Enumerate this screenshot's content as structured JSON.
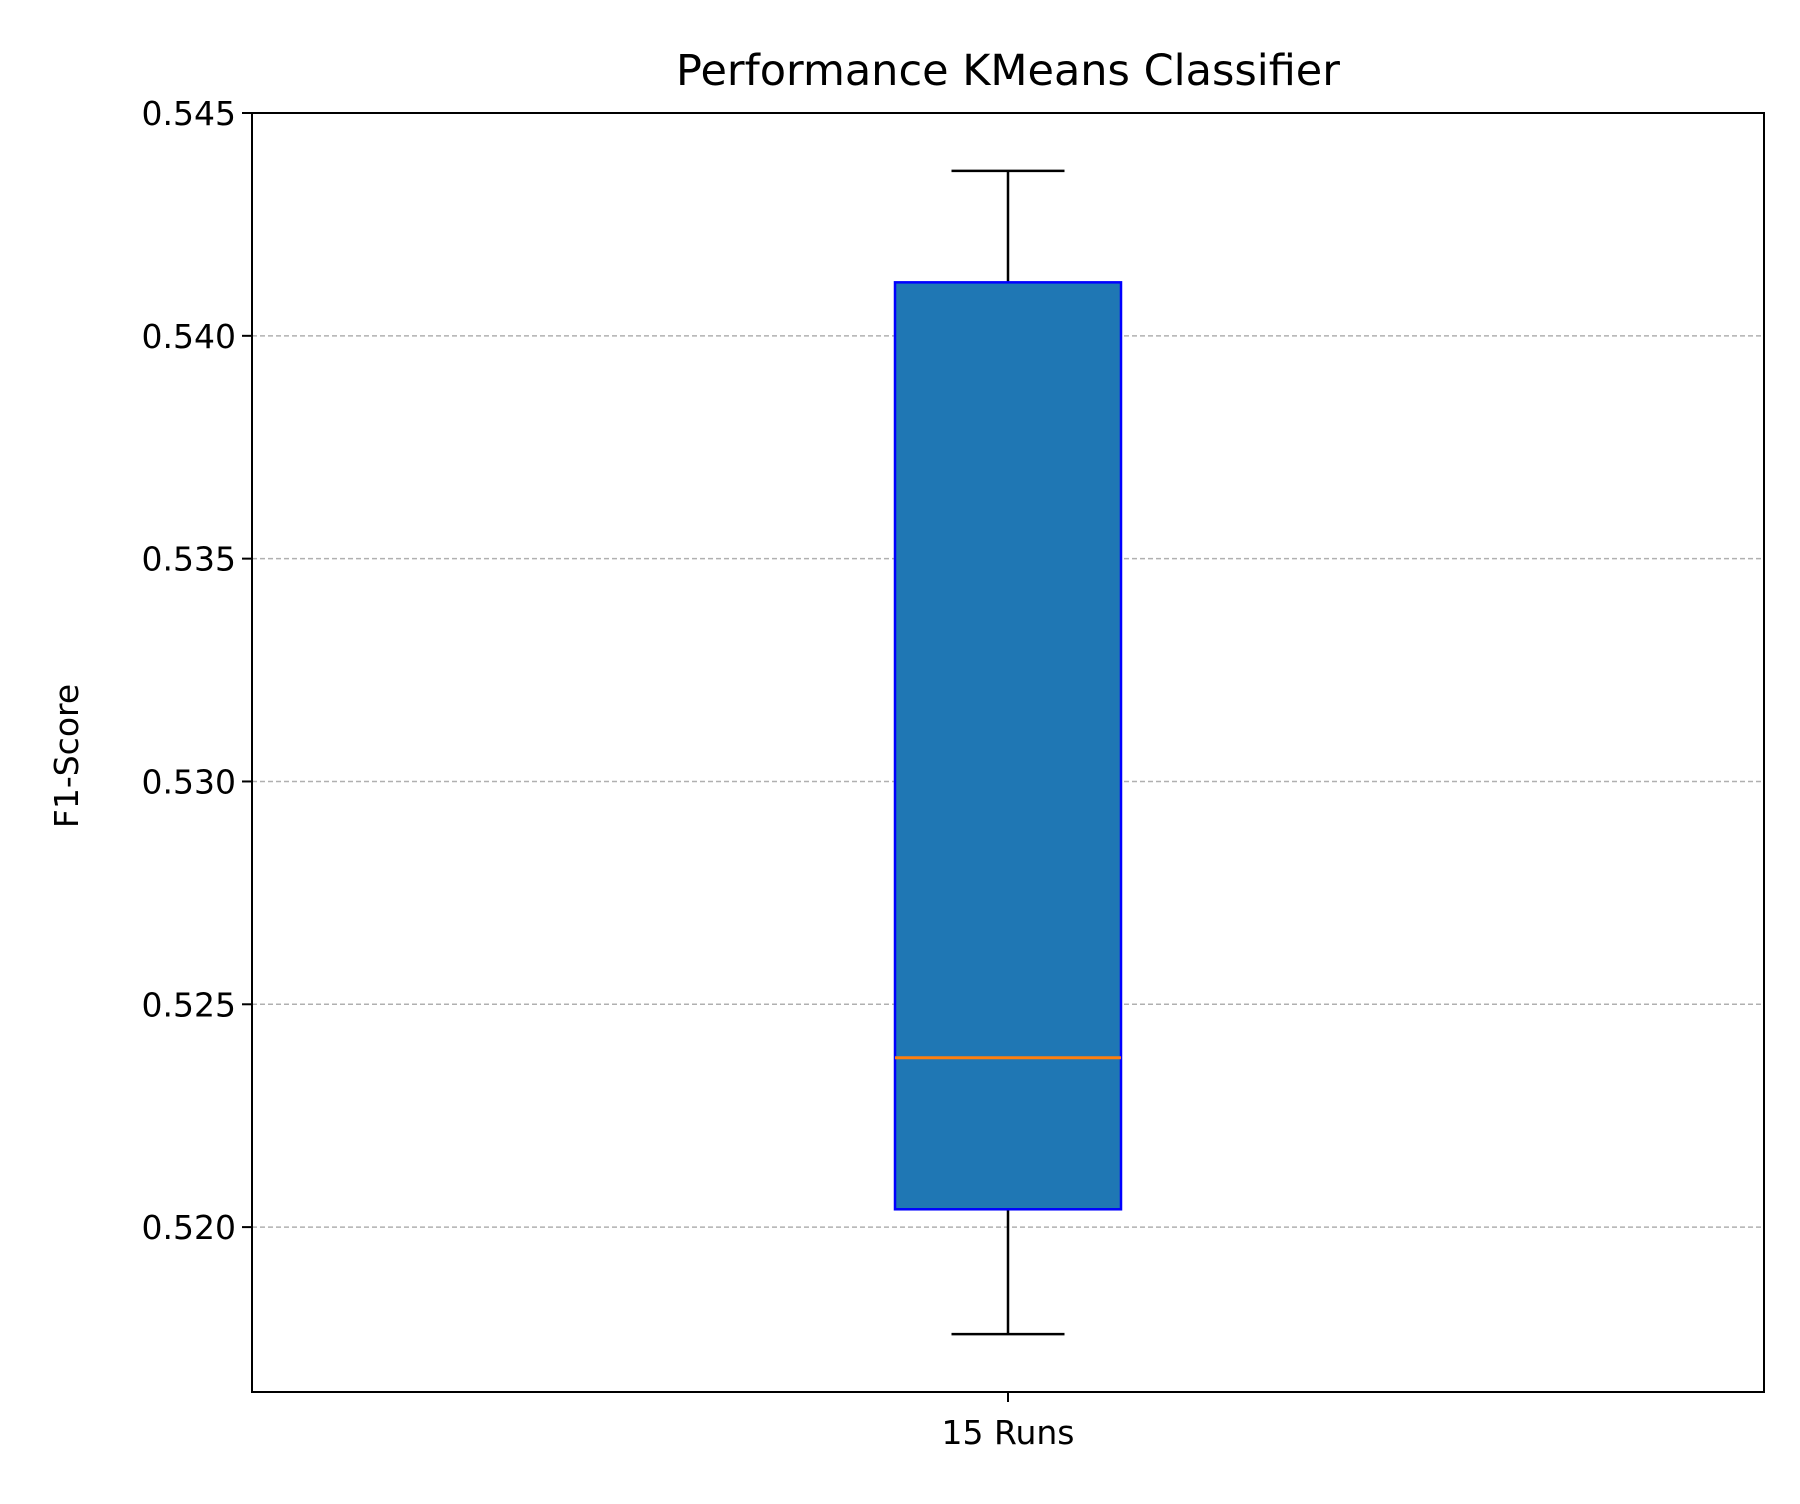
{
  "chart_data": {
    "type": "box",
    "title": "Performance KMeans Classifier",
    "xlabel": "",
    "ylabel": "F1-Score",
    "categories": [
      "15 Runs"
    ],
    "boxes": [
      {
        "category": "15 Runs",
        "whisker_low": 0.5176,
        "q1": 0.5204,
        "median": 0.5238,
        "q3": 0.5412,
        "whisker_high": 0.5437
      }
    ],
    "ylim": [
      0.5163,
      0.545
    ],
    "yticks": [
      0.52,
      0.525,
      0.53,
      0.535,
      0.54,
      0.545
    ],
    "ytick_labels": [
      "0.520",
      "0.525",
      "0.530",
      "0.535",
      "0.540",
      "0.545"
    ],
    "grid": "y-dashed",
    "colors": {
      "box_fill": "#1f77b4",
      "box_edge": "#0000ff",
      "median": "#ff7f0e",
      "whisker": "#000000",
      "grid": "#b0b0b0",
      "axes": "#000000"
    }
  }
}
